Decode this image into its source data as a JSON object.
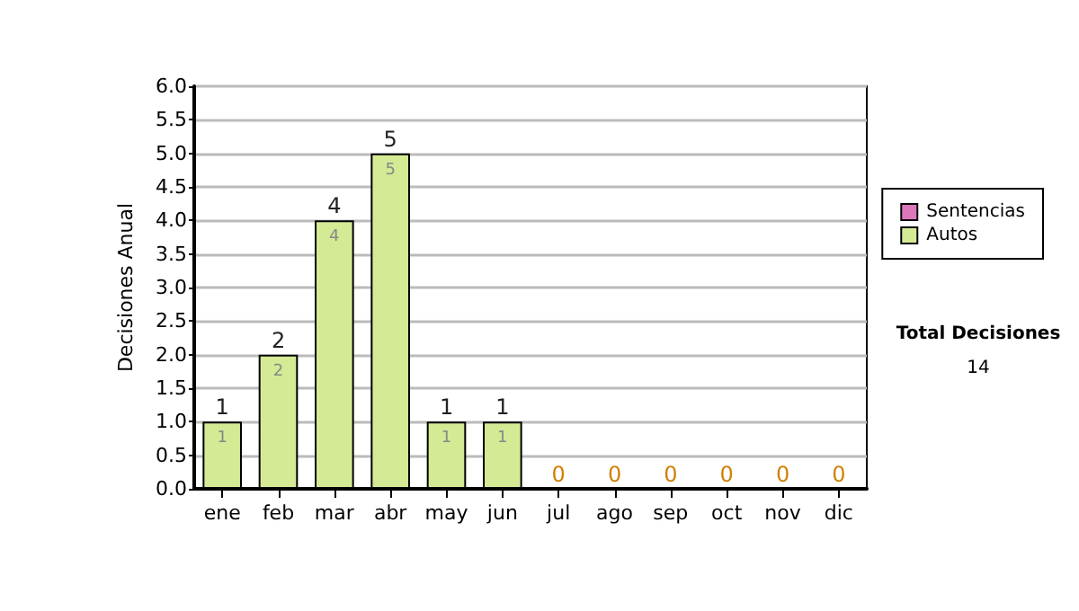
{
  "chart_data": {
    "type": "bar",
    "ylabel": "Decisiones Anual",
    "categories": [
      "ene",
      "feb",
      "mar",
      "abr",
      "may",
      "jun",
      "jul",
      "ago",
      "sep",
      "oct",
      "nov",
      "dic"
    ],
    "stacked": true,
    "series": [
      {
        "name": "Sentencias",
        "color": "#dd77bb",
        "values": [
          0,
          0,
          0,
          0,
          0,
          0,
          0,
          0,
          0,
          0,
          0,
          0
        ]
      },
      {
        "name": "Autos",
        "color": "#d4ea95",
        "values": [
          1,
          2,
          4,
          5,
          1,
          1,
          0,
          0,
          0,
          0,
          0,
          0
        ],
        "value_labels": [
          "1",
          "2",
          "4",
          "5",
          "1",
          "1",
          null,
          null,
          null,
          null,
          null,
          null
        ]
      }
    ],
    "totals": [
      "1",
      "2",
      "4",
      "5",
      "1",
      "1",
      "0",
      "0",
      "0",
      "0",
      "0",
      "0"
    ],
    "ylim": [
      0,
      6
    ],
    "yticks": [
      {
        "value": 0,
        "label": "0.0"
      },
      {
        "value": 0.5,
        "label": "0.5"
      },
      {
        "value": 1,
        "label": "1.0"
      },
      {
        "value": 1.5,
        "label": "1.5"
      },
      {
        "value": 2,
        "label": "2.0"
      },
      {
        "value": 2.5,
        "label": "2.5"
      },
      {
        "value": 3,
        "label": "3.0"
      },
      {
        "value": 3.5,
        "label": "3.5"
      },
      {
        "value": 4,
        "label": "4.0"
      },
      {
        "value": 4.5,
        "label": "4.5"
      },
      {
        "value": 5,
        "label": "5.0"
      },
      {
        "value": 5.5,
        "label": "5.5"
      },
      {
        "value": 6,
        "label": "6.0"
      }
    ],
    "grid": "y",
    "legend": "right",
    "annotations": [
      "Total Decisiones",
      "14"
    ]
  }
}
